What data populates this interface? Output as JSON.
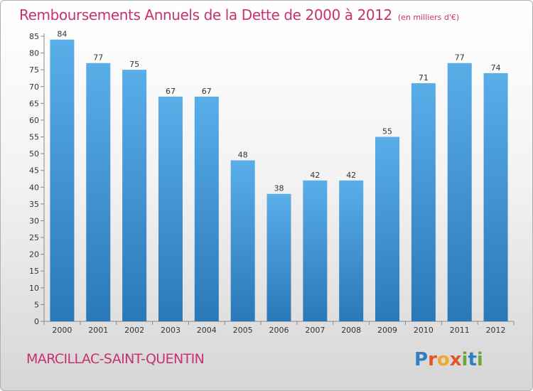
{
  "chart_data": {
    "type": "bar",
    "title": "Remboursements Annuels de la Dette de 2000 à 2012",
    "subtitle": "(en milliers d'€)",
    "categories": [
      "2000",
      "2001",
      "2002",
      "2003",
      "2004",
      "2005",
      "2006",
      "2007",
      "2008",
      "2009",
      "2010",
      "2011",
      "2012"
    ],
    "values": [
      84,
      77,
      75,
      67,
      67,
      48,
      38,
      42,
      42,
      55,
      71,
      77,
      74
    ],
    "ylim": [
      0,
      85
    ],
    "yticks": [
      0,
      5,
      10,
      15,
      20,
      25,
      30,
      35,
      40,
      45,
      50,
      55,
      60,
      65,
      70,
      75,
      80,
      85
    ],
    "xlabel": "",
    "ylabel": "",
    "grid": false,
    "bar_color": "#4a9ad8"
  },
  "commune": "MARCILLAC-SAINT-QUENTIN",
  "logo": {
    "text": "Proxiti",
    "letters": [
      "P",
      "r",
      "o",
      "x",
      "i",
      "t",
      "i"
    ],
    "colors": [
      "#2f7fc4",
      "#e0572a",
      "#f0a82a",
      "#e0572a",
      "#6aa83c",
      "#2f7fc4",
      "#6aa83c"
    ]
  }
}
